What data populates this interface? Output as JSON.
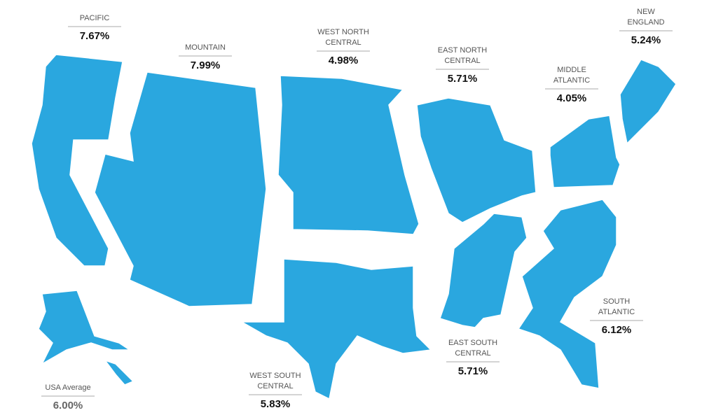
{
  "regions": [
    {
      "name": [
        "PACIFIC"
      ],
      "value": "7.67%"
    },
    {
      "name": [
        "MOUNTAIN"
      ],
      "value": "7.99%"
    },
    {
      "name": [
        "WEST NORTH",
        "CENTRAL"
      ],
      "value": "4.98%"
    },
    {
      "name": [
        "EAST NORTH",
        "CENTRAL"
      ],
      "value": "5.71%"
    },
    {
      "name": [
        "MIDDLE",
        "ATLANTIC"
      ],
      "value": "4.05%"
    },
    {
      "name": [
        "NEW",
        "ENGLAND"
      ],
      "value": "5.24%"
    },
    {
      "name": [
        "SOUTH",
        "ATLANTIC"
      ],
      "value": "6.12%"
    },
    {
      "name": [
        "EAST SOUTH",
        "CENTRAL"
      ],
      "value": "5.71%"
    },
    {
      "name": [
        "WEST SOUTH",
        "CENTRAL"
      ],
      "value": "5.83%"
    },
    {
      "name": [
        "USA Average"
      ],
      "value": "6.00%"
    }
  ]
}
